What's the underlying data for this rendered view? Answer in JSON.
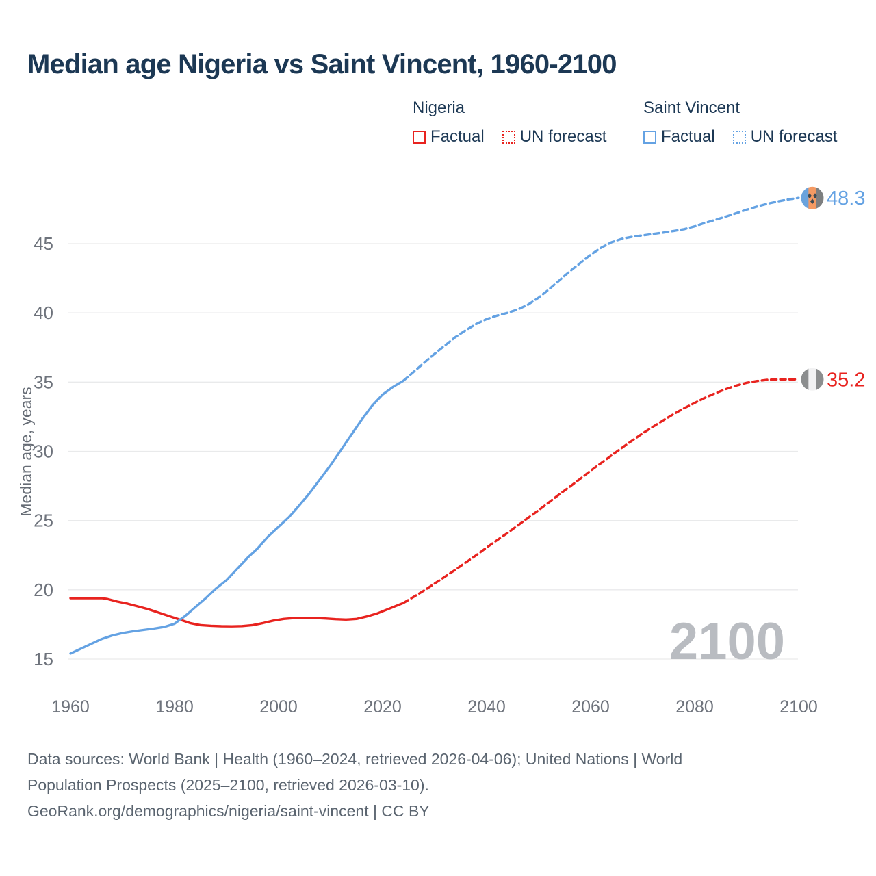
{
  "title": "Median age Nigeria vs Saint Vincent, 1960-2100",
  "legend": {
    "groups": [
      {
        "name": "Nigeria",
        "color": "#e8231f",
        "items": [
          {
            "label": "Factual",
            "style": "solid"
          },
          {
            "label": "UN forecast",
            "style": "dashed"
          }
        ]
      },
      {
        "name": "Saint Vincent",
        "color": "#64a2e3",
        "items": [
          {
            "label": "Factual",
            "style": "solid"
          },
          {
            "label": "UN forecast",
            "style": "dashed"
          }
        ]
      }
    ]
  },
  "watermark": "2100",
  "footer": {
    "lines": [
      "Data sources: World Bank | Health (1960–2024, retrieved 2026-04-06); United Nations | World",
      "Population Prospects (2025–2100, retrieved 2026-03-10).",
      "GeoRank.org/demographics/nigeria/saint-vincent | CC BY"
    ]
  },
  "colors": {
    "nigeria": "#e8231f",
    "saint_vincent": "#64a2e3",
    "grid": "#e9eaeb",
    "tick_text": "#6e737c",
    "axis_label": "#666c75",
    "watermark": "#b9bcc1",
    "title_text": "#1c3854"
  },
  "chart_data": {
    "type": "line",
    "title": "Median age Nigeria vs Saint Vincent, 1960-2100",
    "xlabel": "",
    "ylabel": "Median age, years",
    "xlim": [
      1960,
      2100
    ],
    "ylim": [
      15,
      45
    ],
    "grid": "horizontal",
    "legend_position": "top-right",
    "x_ticks": [
      1960,
      1980,
      2000,
      2020,
      2040,
      2060,
      2080,
      2100
    ],
    "y_ticks": [
      15,
      20,
      25,
      30,
      35,
      40,
      45
    ],
    "series": [
      {
        "name": "Nigeria — Factual",
        "color": "#e8231f",
        "style": "solid",
        "points": [
          [
            1960,
            19.4
          ],
          [
            1963,
            19.4
          ],
          [
            1966,
            19.4
          ],
          [
            1967,
            19.35
          ],
          [
            1969,
            19.15
          ],
          [
            1971,
            19.0
          ],
          [
            1973,
            18.8
          ],
          [
            1975,
            18.6
          ],
          [
            1977,
            18.35
          ],
          [
            1979,
            18.1
          ],
          [
            1981,
            17.85
          ],
          [
            1983,
            17.6
          ],
          [
            1985,
            17.45
          ],
          [
            1987,
            17.4
          ],
          [
            1989,
            17.37
          ],
          [
            1991,
            17.36
          ],
          [
            1993,
            17.38
          ],
          [
            1995,
            17.45
          ],
          [
            1997,
            17.6
          ],
          [
            1999,
            17.78
          ],
          [
            2001,
            17.9
          ],
          [
            2003,
            17.96
          ],
          [
            2005,
            17.98
          ],
          [
            2007,
            17.97
          ],
          [
            2009,
            17.93
          ],
          [
            2011,
            17.88
          ],
          [
            2013,
            17.85
          ],
          [
            2015,
            17.9
          ],
          [
            2017,
            18.08
          ],
          [
            2019,
            18.3
          ],
          [
            2021,
            18.6
          ],
          [
            2023,
            18.9
          ],
          [
            2024,
            19.05
          ]
        ]
      },
      {
        "name": "Nigeria — UN forecast",
        "color": "#e8231f",
        "style": "dashed",
        "end_label": "35.2",
        "points": [
          [
            2024,
            19.05
          ],
          [
            2026,
            19.5
          ],
          [
            2028,
            19.95
          ],
          [
            2030,
            20.45
          ],
          [
            2032,
            20.95
          ],
          [
            2034,
            21.45
          ],
          [
            2036,
            21.98
          ],
          [
            2038,
            22.5
          ],
          [
            2040,
            23.05
          ],
          [
            2042,
            23.58
          ],
          [
            2044,
            24.1
          ],
          [
            2046,
            24.65
          ],
          [
            2048,
            25.2
          ],
          [
            2050,
            25.75
          ],
          [
            2052,
            26.32
          ],
          [
            2054,
            26.9
          ],
          [
            2056,
            27.45
          ],
          [
            2058,
            28.02
          ],
          [
            2060,
            28.6
          ],
          [
            2062,
            29.15
          ],
          [
            2064,
            29.7
          ],
          [
            2066,
            30.25
          ],
          [
            2068,
            30.78
          ],
          [
            2070,
            31.3
          ],
          [
            2072,
            31.78
          ],
          [
            2074,
            32.25
          ],
          [
            2076,
            32.7
          ],
          [
            2078,
            33.12
          ],
          [
            2080,
            33.5
          ],
          [
            2082,
            33.87
          ],
          [
            2084,
            34.2
          ],
          [
            2086,
            34.5
          ],
          [
            2088,
            34.75
          ],
          [
            2090,
            34.95
          ],
          [
            2092,
            35.08
          ],
          [
            2094,
            35.17
          ],
          [
            2096,
            35.2
          ],
          [
            2098,
            35.2
          ],
          [
            2100,
            35.2
          ]
        ]
      },
      {
        "name": "Saint Vincent — Factual",
        "color": "#64a2e3",
        "style": "solid",
        "points": [
          [
            1960,
            15.4
          ],
          [
            1962,
            15.75
          ],
          [
            1964,
            16.1
          ],
          [
            1966,
            16.45
          ],
          [
            1968,
            16.7
          ],
          [
            1970,
            16.88
          ],
          [
            1972,
            17.0
          ],
          [
            1974,
            17.1
          ],
          [
            1976,
            17.2
          ],
          [
            1978,
            17.32
          ],
          [
            1980,
            17.55
          ],
          [
            1982,
            18.1
          ],
          [
            1984,
            18.75
          ],
          [
            1986,
            19.4
          ],
          [
            1988,
            20.1
          ],
          [
            1990,
            20.7
          ],
          [
            1992,
            21.5
          ],
          [
            1994,
            22.3
          ],
          [
            1996,
            23.0
          ],
          [
            1998,
            23.85
          ],
          [
            2000,
            24.55
          ],
          [
            2002,
            25.25
          ],
          [
            2004,
            26.1
          ],
          [
            2006,
            27.0
          ],
          [
            2008,
            28.0
          ],
          [
            2010,
            29.0
          ],
          [
            2012,
            30.1
          ],
          [
            2014,
            31.2
          ],
          [
            2016,
            32.3
          ],
          [
            2018,
            33.3
          ],
          [
            2020,
            34.1
          ],
          [
            2022,
            34.65
          ],
          [
            2024,
            35.1
          ]
        ]
      },
      {
        "name": "Saint Vincent — UN forecast",
        "color": "#64a2e3",
        "style": "dashed",
        "end_label": "48.3",
        "points": [
          [
            2024,
            35.1
          ],
          [
            2026,
            35.75
          ],
          [
            2028,
            36.4
          ],
          [
            2030,
            37.05
          ],
          [
            2032,
            37.65
          ],
          [
            2034,
            38.25
          ],
          [
            2036,
            38.75
          ],
          [
            2038,
            39.2
          ],
          [
            2040,
            39.55
          ],
          [
            2042,
            39.8
          ],
          [
            2044,
            40.0
          ],
          [
            2046,
            40.25
          ],
          [
            2048,
            40.6
          ],
          [
            2050,
            41.1
          ],
          [
            2052,
            41.7
          ],
          [
            2054,
            42.35
          ],
          [
            2056,
            43.0
          ],
          [
            2058,
            43.6
          ],
          [
            2060,
            44.2
          ],
          [
            2062,
            44.7
          ],
          [
            2064,
            45.1
          ],
          [
            2066,
            45.35
          ],
          [
            2068,
            45.5
          ],
          [
            2070,
            45.6
          ],
          [
            2072,
            45.7
          ],
          [
            2074,
            45.8
          ],
          [
            2076,
            45.92
          ],
          [
            2078,
            46.05
          ],
          [
            2080,
            46.25
          ],
          [
            2082,
            46.5
          ],
          [
            2084,
            46.72
          ],
          [
            2086,
            46.95
          ],
          [
            2088,
            47.2
          ],
          [
            2090,
            47.45
          ],
          [
            2092,
            47.68
          ],
          [
            2094,
            47.88
          ],
          [
            2096,
            48.05
          ],
          [
            2098,
            48.2
          ],
          [
            2100,
            48.3
          ]
        ]
      }
    ],
    "end_markers": [
      {
        "country": "Saint Vincent",
        "value_label": "48.3",
        "flag": "saint-vincent"
      },
      {
        "country": "Nigeria",
        "value_label": "35.2",
        "flag": "nigeria"
      }
    ]
  }
}
